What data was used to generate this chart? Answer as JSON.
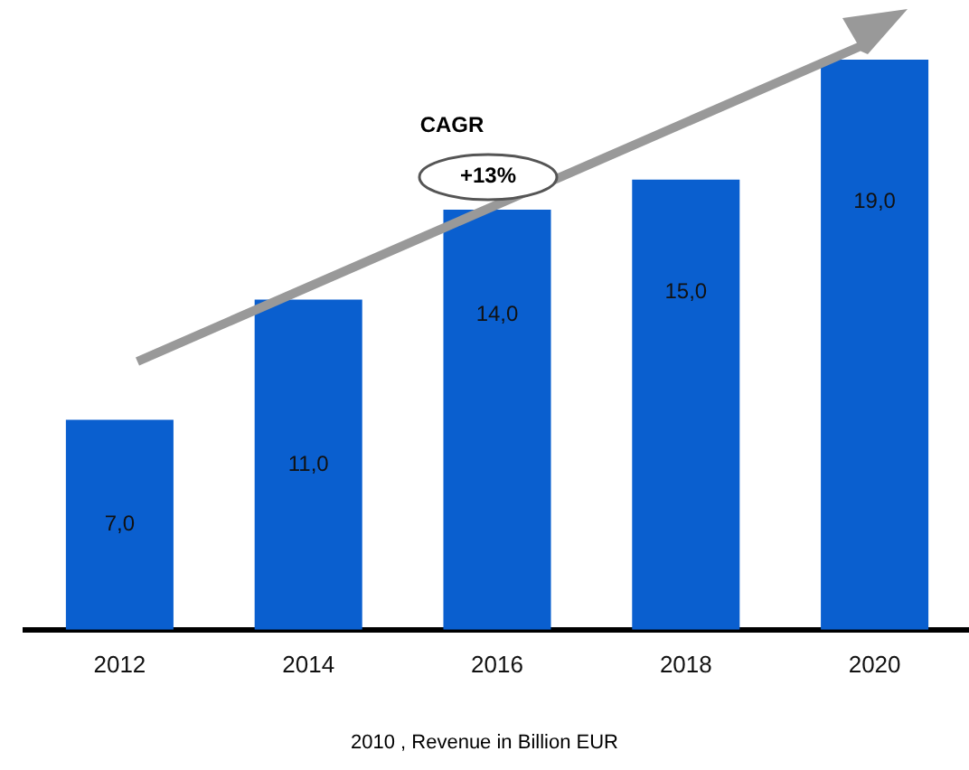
{
  "chart_data": {
    "type": "bar",
    "categories": [
      "2012",
      "2014",
      "2016",
      "2018",
      "2020"
    ],
    "values": [
      7,
      11,
      14,
      15,
      19
    ],
    "value_labels": [
      "7,0",
      "11,0",
      "14,0",
      "15,0",
      "19,0"
    ],
    "color": "#0a5fcf",
    "grid": false,
    "legend": false,
    "annotations": [
      "CAGR",
      "+13%",
      "2010 , Revenue in Billion EUR"
    ]
  }
}
